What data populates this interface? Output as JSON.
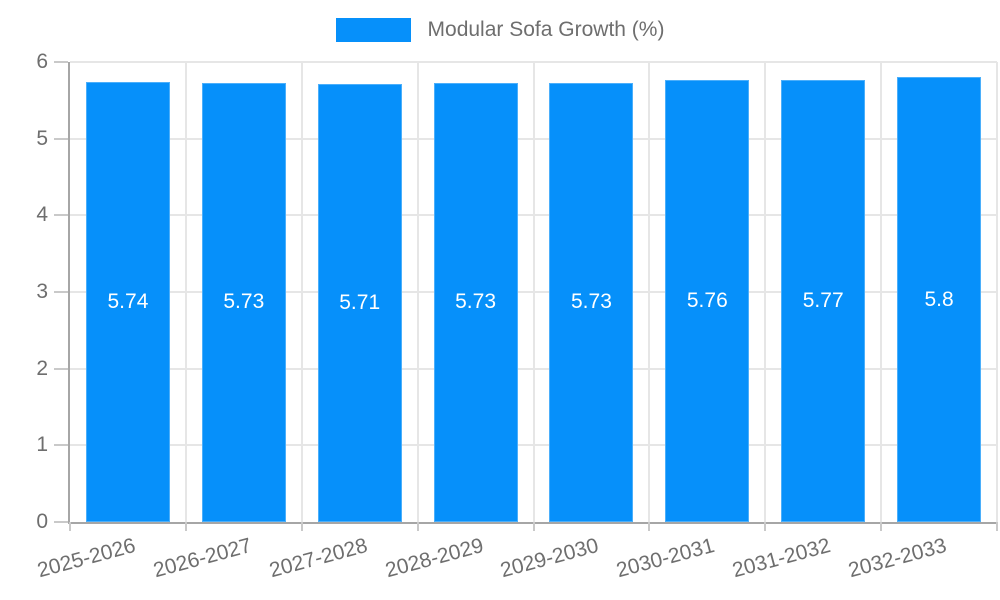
{
  "chart_data": {
    "type": "bar",
    "legend": {
      "label": "Modular Sofa Growth (%)",
      "position": "top"
    },
    "categories": [
      "2025-2026",
      "2026-2027",
      "2027-2028",
      "2028-2029",
      "2029-2030",
      "2030-2031",
      "2031-2032",
      "2032-2033"
    ],
    "series": [
      {
        "name": "Modular Sofa Growth (%)",
        "values": [
          5.74,
          5.73,
          5.71,
          5.73,
          5.73,
          5.76,
          5.77,
          5.8
        ],
        "value_labels": [
          "5.74",
          "5.73",
          "5.71",
          "5.73",
          "5.73",
          "5.76",
          "5.77",
          "5.8"
        ]
      }
    ],
    "title": "",
    "xlabel": "",
    "ylabel": "",
    "ylim": [
      0,
      6
    ],
    "yticks": [
      "0",
      "1",
      "2",
      "3",
      "4",
      "5",
      "6"
    ],
    "grid": true,
    "x_label_rotation_deg": -15,
    "colors": {
      "bar": "#0690fa",
      "axis": "#a6a6a6",
      "grid": "#e6e6e6",
      "tick": "#c9c9c9",
      "text": "#6e6e6e",
      "value_text": "#ffffff"
    }
  }
}
